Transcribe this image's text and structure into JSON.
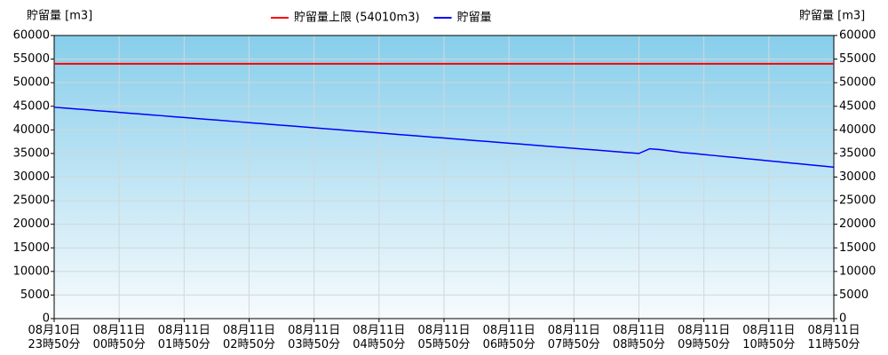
{
  "chart_data": {
    "type": "line",
    "ylabel": "貯留量 [m3]",
    "y2label": "貯留量 [m3]",
    "ylim": [
      0,
      60000
    ],
    "yticks": [
      0,
      5000,
      10000,
      15000,
      20000,
      25000,
      30000,
      35000,
      40000,
      45000,
      50000,
      55000,
      60000
    ],
    "y2lim": [
      0,
      60000
    ],
    "y2ticks": [
      0,
      5000,
      10000,
      15000,
      20000,
      25000,
      30000,
      35000,
      40000,
      45000,
      50000,
      55000,
      60000
    ],
    "grid": true,
    "limit": {
      "name": "貯留量上限 (54010m3)",
      "color": "#ff0000",
      "value": 54010
    },
    "categories": [
      [
        "08月10日",
        "23時50分"
      ],
      null,
      null,
      null,
      null,
      null,
      [
        "08月11日",
        "00時50分"
      ],
      null,
      null,
      null,
      null,
      null,
      [
        "08月11日",
        "01時50分"
      ],
      null,
      null,
      null,
      null,
      null,
      [
        "08月11日",
        "02時50分"
      ],
      null,
      null,
      null,
      null,
      null,
      [
        "08月11日",
        "03時50分"
      ],
      null,
      null,
      null,
      null,
      null,
      [
        "08月11日",
        "04時50分"
      ],
      null,
      null,
      null,
      null,
      null,
      [
        "08月11日",
        "05時50分"
      ],
      null,
      null,
      null,
      null,
      null,
      [
        "08月11日",
        "06時50分"
      ],
      null,
      null,
      null,
      null,
      null,
      [
        "08月11日",
        "07時50分"
      ],
      null,
      null,
      null,
      null,
      null,
      [
        "08月11日",
        "08時50分"
      ],
      null,
      null,
      null,
      null,
      null,
      [
        "08月11日",
        "09時50分"
      ],
      null,
      null,
      null,
      null,
      null,
      [
        "08月11日",
        "10時50分"
      ],
      null,
      null,
      null,
      null,
      null,
      [
        "08月11日",
        "11時50分"
      ]
    ],
    "series": [
      {
        "name": "貯留量",
        "color": "#0000ff",
        "values": [
          44800,
          44620,
          44440,
          44260,
          44070,
          43890,
          43710,
          43530,
          43350,
          43170,
          42990,
          42800,
          42620,
          42440,
          42260,
          42080,
          41900,
          41720,
          41530,
          41350,
          41170,
          40990,
          40810,
          40630,
          40440,
          40260,
          40080,
          39900,
          39720,
          39540,
          39360,
          39170,
          38990,
          38810,
          38630,
          38450,
          38270,
          38080,
          37900,
          37720,
          37540,
          37360,
          37180,
          37000,
          36810,
          36630,
          36450,
          36270,
          36090,
          35910,
          35730,
          35540,
          35360,
          35180,
          35000,
          36000,
          35800,
          35500,
          35200,
          35000,
          34780,
          34550,
          34330,
          34110,
          33880,
          33660,
          33440,
          33220,
          32990,
          32770,
          32550,
          32330,
          32100
        ]
      }
    ]
  }
}
